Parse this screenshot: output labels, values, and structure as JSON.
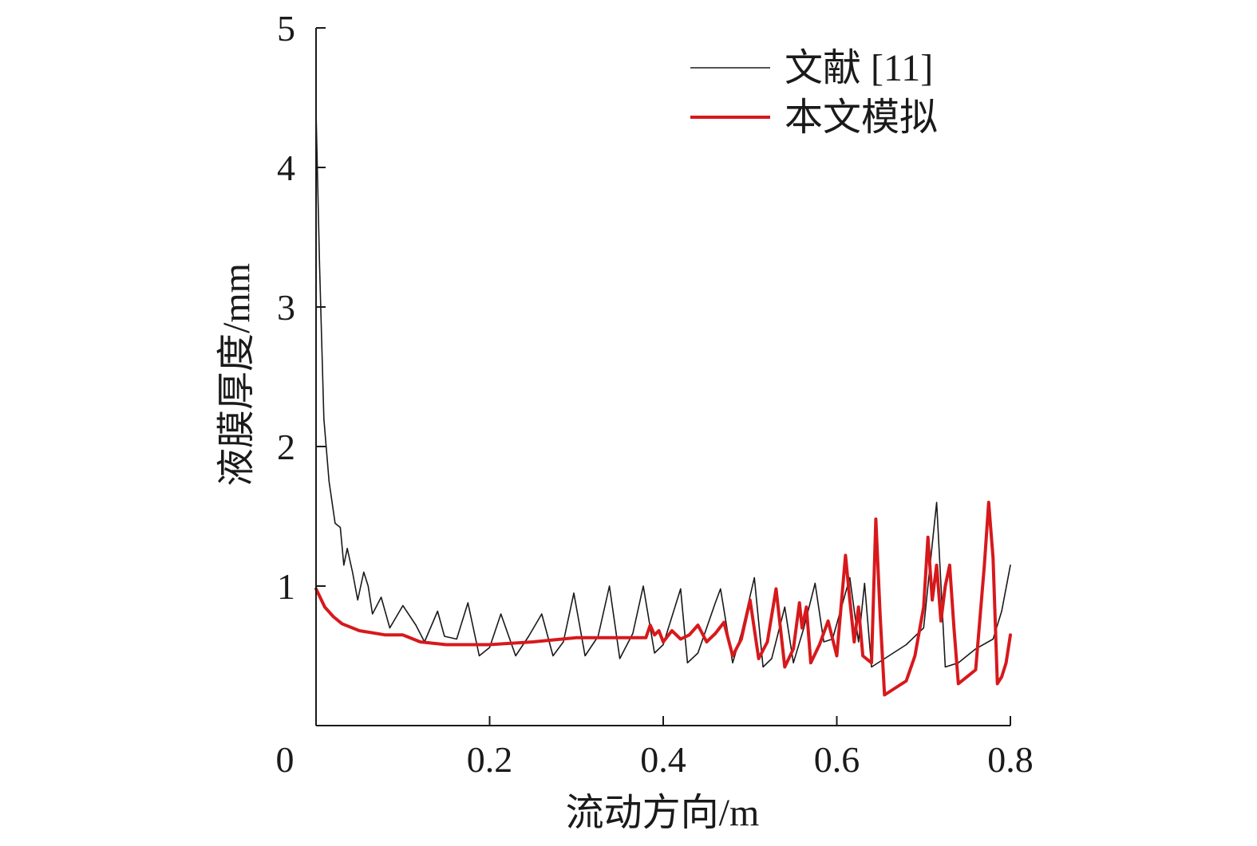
{
  "chart_data": {
    "type": "line",
    "title": "",
    "xlabel": "流动方向/m",
    "ylabel": "液膜厚度/mm",
    "xlim": [
      0,
      0.8
    ],
    "ylim": [
      0,
      5
    ],
    "xticks": [
      {
        "value": 0,
        "label": "0"
      },
      {
        "value": 0.2,
        "label": "0.2"
      },
      {
        "value": 0.4,
        "label": "0.4"
      },
      {
        "value": 0.6,
        "label": "0.6"
      },
      {
        "value": 0.8,
        "label": "0.8"
      }
    ],
    "yticks": [
      {
        "value": 1,
        "label": "1"
      },
      {
        "value": 2,
        "label": "2"
      },
      {
        "value": 3,
        "label": "3"
      },
      {
        "value": 4,
        "label": "4"
      },
      {
        "value": 5,
        "label": "5"
      }
    ],
    "grid": false,
    "legend_position": "top-right",
    "series": [
      {
        "name": "文献 [11]",
        "color": "#1a1a1a",
        "points": [
          [
            0.0,
            4.4
          ],
          [
            0.004,
            3.3
          ],
          [
            0.009,
            2.2
          ],
          [
            0.015,
            1.75
          ],
          [
            0.022,
            1.45
          ],
          [
            0.028,
            1.42
          ],
          [
            0.032,
            1.15
          ],
          [
            0.036,
            1.27
          ],
          [
            0.042,
            1.1
          ],
          [
            0.048,
            0.9
          ],
          [
            0.055,
            1.1
          ],
          [
            0.06,
            1.0
          ],
          [
            0.065,
            0.8
          ],
          [
            0.075,
            0.92
          ],
          [
            0.085,
            0.7
          ],
          [
            0.1,
            0.86
          ],
          [
            0.115,
            0.72
          ],
          [
            0.125,
            0.6
          ],
          [
            0.14,
            0.82
          ],
          [
            0.148,
            0.64
          ],
          [
            0.162,
            0.62
          ],
          [
            0.175,
            0.88
          ],
          [
            0.188,
            0.5
          ],
          [
            0.2,
            0.56
          ],
          [
            0.213,
            0.8
          ],
          [
            0.23,
            0.5
          ],
          [
            0.245,
            0.64
          ],
          [
            0.26,
            0.8
          ],
          [
            0.273,
            0.5
          ],
          [
            0.285,
            0.6
          ],
          [
            0.297,
            0.95
          ],
          [
            0.31,
            0.5
          ],
          [
            0.325,
            0.64
          ],
          [
            0.338,
            1.0
          ],
          [
            0.35,
            0.48
          ],
          [
            0.365,
            0.66
          ],
          [
            0.377,
            1.0
          ],
          [
            0.39,
            0.52
          ],
          [
            0.4,
            0.58
          ],
          [
            0.42,
            0.98
          ],
          [
            0.428,
            0.45
          ],
          [
            0.44,
            0.52
          ],
          [
            0.46,
            0.88
          ],
          [
            0.466,
            0.98
          ],
          [
            0.48,
            0.45
          ],
          [
            0.49,
            0.66
          ],
          [
            0.505,
            1.06
          ],
          [
            0.515,
            0.42
          ],
          [
            0.525,
            0.48
          ],
          [
            0.54,
            0.85
          ],
          [
            0.55,
            0.45
          ],
          [
            0.562,
            0.7
          ],
          [
            0.575,
            1.02
          ],
          [
            0.585,
            0.6
          ],
          [
            0.595,
            0.62
          ],
          [
            0.615,
            1.06
          ],
          [
            0.625,
            0.6
          ],
          [
            0.632,
            1.02
          ],
          [
            0.64,
            0.42
          ],
          [
            0.66,
            0.5
          ],
          [
            0.68,
            0.58
          ],
          [
            0.7,
            0.7
          ],
          [
            0.71,
            1.3
          ],
          [
            0.715,
            1.6
          ],
          [
            0.725,
            0.42
          ],
          [
            0.74,
            0.45
          ],
          [
            0.76,
            0.55
          ],
          [
            0.78,
            0.62
          ],
          [
            0.79,
            0.82
          ],
          [
            0.8,
            1.15
          ]
        ]
      },
      {
        "name": "本文模拟",
        "color": "#d7191c",
        "points": [
          [
            0.0,
            0.98
          ],
          [
            0.01,
            0.85
          ],
          [
            0.02,
            0.78
          ],
          [
            0.03,
            0.73
          ],
          [
            0.05,
            0.68
          ],
          [
            0.08,
            0.65
          ],
          [
            0.1,
            0.65
          ],
          [
            0.12,
            0.6
          ],
          [
            0.15,
            0.58
          ],
          [
            0.2,
            0.58
          ],
          [
            0.25,
            0.6
          ],
          [
            0.3,
            0.63
          ],
          [
            0.35,
            0.63
          ],
          [
            0.38,
            0.63
          ],
          [
            0.385,
            0.72
          ],
          [
            0.39,
            0.65
          ],
          [
            0.395,
            0.68
          ],
          [
            0.4,
            0.6
          ],
          [
            0.41,
            0.68
          ],
          [
            0.42,
            0.62
          ],
          [
            0.43,
            0.65
          ],
          [
            0.44,
            0.72
          ],
          [
            0.45,
            0.6
          ],
          [
            0.46,
            0.66
          ],
          [
            0.47,
            0.74
          ],
          [
            0.48,
            0.5
          ],
          [
            0.49,
            0.62
          ],
          [
            0.5,
            0.9
          ],
          [
            0.51,
            0.48
          ],
          [
            0.52,
            0.6
          ],
          [
            0.53,
            0.98
          ],
          [
            0.54,
            0.42
          ],
          [
            0.55,
            0.55
          ],
          [
            0.557,
            0.88
          ],
          [
            0.56,
            0.7
          ],
          [
            0.565,
            0.85
          ],
          [
            0.57,
            0.45
          ],
          [
            0.58,
            0.58
          ],
          [
            0.59,
            0.75
          ],
          [
            0.6,
            0.5
          ],
          [
            0.61,
            1.22
          ],
          [
            0.615,
            0.9
          ],
          [
            0.62,
            0.6
          ],
          [
            0.625,
            0.85
          ],
          [
            0.63,
            0.5
          ],
          [
            0.64,
            0.45
          ],
          [
            0.645,
            1.48
          ],
          [
            0.65,
            0.78
          ],
          [
            0.655,
            0.22
          ],
          [
            0.66,
            0.24
          ],
          [
            0.67,
            0.28
          ],
          [
            0.68,
            0.32
          ],
          [
            0.69,
            0.5
          ],
          [
            0.7,
            0.85
          ],
          [
            0.705,
            1.35
          ],
          [
            0.71,
            0.9
          ],
          [
            0.715,
            1.15
          ],
          [
            0.72,
            0.75
          ],
          [
            0.725,
            1.0
          ],
          [
            0.73,
            1.15
          ],
          [
            0.735,
            0.7
          ],
          [
            0.74,
            0.3
          ],
          [
            0.75,
            0.35
          ],
          [
            0.76,
            0.4
          ],
          [
            0.77,
            1.15
          ],
          [
            0.775,
            1.6
          ],
          [
            0.78,
            1.2
          ],
          [
            0.785,
            0.3
          ],
          [
            0.79,
            0.35
          ],
          [
            0.795,
            0.45
          ],
          [
            0.8,
            0.65
          ]
        ]
      }
    ]
  }
}
